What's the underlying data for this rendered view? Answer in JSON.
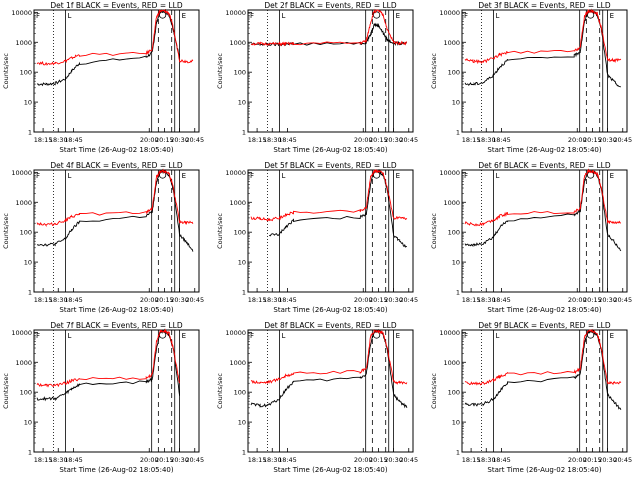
{
  "figure": {
    "xlabel": "Start Time (26-Aug-02 18:05:40)",
    "ylabel": "Counts/sec"
  },
  "axes": {
    "xticks": [
      "18:15",
      "18:30",
      "18:45",
      "20:00",
      "20:15",
      "20:30",
      "20:45"
    ],
    "xtick_values": [
      18.25,
      18.5,
      18.75,
      20.0,
      20.25,
      20.5,
      20.75
    ],
    "yticks": [
      "1",
      "10",
      "100",
      "1000",
      "10000"
    ],
    "ytick_values": [
      1,
      10,
      100,
      1000,
      10000
    ],
    "xlim": [
      18.1,
      20.82
    ],
    "ylim": [
      1,
      12000
    ],
    "yscale": "log"
  },
  "markers": {
    "dotted": [
      18.42
    ],
    "solid": [
      18.62,
      20.04,
      20.42,
      20.5
    ],
    "dashed": [
      20.15,
      20.37
    ],
    "circle_at": 20.22,
    "flags": [
      "F",
      "L",
      "E"
    ]
  },
  "colors": {
    "events": "#000000",
    "lld": "#ff0000",
    "axes": "#000000"
  },
  "chart_data": [
    {
      "type": "line",
      "title": "Det 1f BLACK = Events, RED = LLD",
      "x": [
        18.15,
        18.3,
        18.45,
        18.62,
        18.72,
        18.85,
        19.95,
        20.05,
        20.12,
        20.18,
        20.26,
        20.33,
        20.4,
        20.5,
        20.6,
        20.72
      ],
      "series": [
        {
          "name": "BLACK = Events",
          "y": [
            40,
            40,
            42,
            60,
            110,
            200,
            320,
            450,
            4500,
            11000,
            11000,
            8000,
            2500,
            300,
            null,
            null
          ]
        },
        {
          "name": "RED = LLD",
          "y": [
            210,
            190,
            200,
            240,
            300,
            380,
            420,
            600,
            7000,
            11000,
            11000,
            9000,
            2800,
            250,
            230,
            230
          ]
        }
      ]
    },
    {
      "type": "line",
      "title": "Det 2f BLACK = Events, RED = LLD",
      "x": [
        18.15,
        18.3,
        18.45,
        18.62,
        18.72,
        18.85,
        19.95,
        20.05,
        20.12,
        20.18,
        20.26,
        20.33,
        20.4,
        20.5,
        20.6,
        20.72
      ],
      "series": [
        {
          "name": "BLACK = Events",
          "y": [
            850,
            850,
            850,
            850,
            860,
            880,
            900,
            1000,
            1800,
            4000,
            3500,
            2000,
            1200,
            950,
            900,
            900
          ]
        },
        {
          "name": "RED = LLD",
          "y": [
            900,
            880,
            880,
            880,
            880,
            900,
            950,
            1100,
            4500,
            11000,
            11000,
            8000,
            2500,
            1000,
            950,
            950
          ]
        }
      ]
    },
    {
      "type": "line",
      "title": "Det 3f BLACK = Events, RED = LLD",
      "x": [
        18.15,
        18.3,
        18.45,
        18.62,
        18.72,
        18.85,
        19.95,
        20.05,
        20.12,
        20.18,
        20.26,
        20.33,
        20.4,
        20.5,
        20.6,
        20.72
      ],
      "series": [
        {
          "name": "BLACK = Events",
          "y": [
            40,
            40,
            45,
            80,
            150,
            250,
            350,
            500,
            5000,
            11000,
            11000,
            8000,
            2600,
            80,
            50,
            30
          ]
        },
        {
          "name": "RED = LLD",
          "y": [
            270,
            230,
            220,
            300,
            380,
            450,
            500,
            700,
            7500,
            11000,
            11000,
            9000,
            2800,
            260,
            250,
            250
          ]
        }
      ]
    },
    {
      "type": "line",
      "title": "Det 4f BLACK = Events, RED = LLD",
      "x": [
        18.15,
        18.3,
        18.45,
        18.62,
        18.72,
        18.85,
        19.95,
        20.05,
        20.12,
        20.18,
        20.26,
        20.33,
        20.4,
        20.5,
        20.6,
        20.72
      ],
      "series": [
        {
          "name": "BLACK = Events",
          "y": [
            40,
            38,
            40,
            60,
            120,
            220,
            350,
            480,
            4800,
            11000,
            11000,
            8000,
            2500,
            80,
            50,
            25
          ]
        },
        {
          "name": "RED = LLD",
          "y": [
            200,
            180,
            190,
            250,
            320,
            400,
            450,
            650,
            7000,
            11000,
            11000,
            9000,
            2800,
            220,
            210,
            210
          ]
        }
      ]
    },
    {
      "type": "line",
      "title": "Det 5f BLACK = Events, RED = LLD",
      "x": [
        18.15,
        18.3,
        18.45,
        18.62,
        18.72,
        18.85,
        19.95,
        20.05,
        20.12,
        20.18,
        20.26,
        20.33,
        20.4,
        20.5,
        20.6,
        20.72
      ],
      "series": [
        {
          "name": "BLACK = Events",
          "y": [
            null,
            null,
            80,
            85,
            150,
            250,
            320,
            420,
            4000,
            11000,
            11000,
            8000,
            2500,
            80,
            50,
            30
          ]
        },
        {
          "name": "RED = LLD",
          "y": [
            300,
            280,
            260,
            300,
            380,
            450,
            500,
            650,
            7000,
            11000,
            11000,
            9000,
            2800,
            300,
            290,
            290
          ]
        }
      ]
    },
    {
      "type": "line",
      "title": "Det 6f BLACK = Events, RED = LLD",
      "x": [
        18.15,
        18.3,
        18.45,
        18.62,
        18.72,
        18.85,
        19.95,
        20.05,
        20.12,
        20.18,
        20.26,
        20.33,
        20.4,
        20.5,
        20.6,
        20.72
      ],
      "series": [
        {
          "name": "BLACK = Events",
          "y": [
            40,
            38,
            40,
            70,
            140,
            250,
            380,
            520,
            5000,
            11000,
            11000,
            8000,
            2600,
            80,
            50,
            25
          ]
        },
        {
          "name": "RED = LLD",
          "y": [
            200,
            180,
            190,
            260,
            340,
            420,
            480,
            650,
            7500,
            11000,
            11000,
            9000,
            2800,
            220,
            210,
            210
          ]
        }
      ]
    },
    {
      "type": "line",
      "title": "Det 7f BLACK = Events, RED = LLD",
      "x": [
        18.15,
        18.3,
        18.45,
        18.62,
        18.72,
        18.85,
        19.95,
        20.05,
        20.12,
        20.18,
        20.26,
        20.33,
        20.4,
        20.5,
        20.6,
        20.72
      ],
      "series": [
        {
          "name": "BLACK = Events",
          "y": [
            60,
            60,
            62,
            90,
            130,
            180,
            220,
            280,
            3000,
            11000,
            11000,
            8000,
            2500,
            80,
            null,
            null
          ]
        },
        {
          "name": "RED = LLD",
          "y": [
            180,
            170,
            170,
            200,
            240,
            280,
            300,
            380,
            5000,
            11000,
            11000,
            9000,
            2800,
            180,
            null,
            null
          ]
        }
      ]
    },
    {
      "type": "line",
      "title": "Det 8f BLACK = Events, RED = LLD",
      "x": [
        18.15,
        18.3,
        18.45,
        18.62,
        18.72,
        18.85,
        19.95,
        20.05,
        20.12,
        20.18,
        20.26,
        20.33,
        20.4,
        20.5,
        20.6,
        20.72
      ],
      "series": [
        {
          "name": "BLACK = Events",
          "y": [
            40,
            35,
            38,
            60,
            120,
            220,
            300,
            400,
            4000,
            11000,
            11000,
            8000,
            2500,
            80,
            50,
            30
          ]
        },
        {
          "name": "RED = LLD",
          "y": [
            230,
            210,
            220,
            280,
            350,
            420,
            480,
            600,
            7000,
            11000,
            11000,
            9000,
            2800,
            220,
            210,
            210
          ]
        }
      ]
    },
    {
      "type": "line",
      "title": "Det 9f BLACK = Events, RED = LLD",
      "x": [
        18.15,
        18.3,
        18.45,
        18.62,
        18.72,
        18.85,
        19.95,
        20.05,
        20.12,
        20.18,
        20.26,
        20.33,
        20.4,
        20.5,
        20.6,
        20.72
      ],
      "series": [
        {
          "name": "BLACK = Events",
          "y": [
            40,
            38,
            40,
            60,
            110,
            200,
            300,
            420,
            4200,
            11000,
            11000,
            8000,
            2500,
            80,
            50,
            25
          ]
        },
        {
          "name": "RED = LLD",
          "y": [
            210,
            190,
            200,
            260,
            330,
            400,
            460,
            620,
            7200,
            11000,
            11000,
            9000,
            2800,
            210,
            200,
            200
          ]
        }
      ]
    }
  ]
}
